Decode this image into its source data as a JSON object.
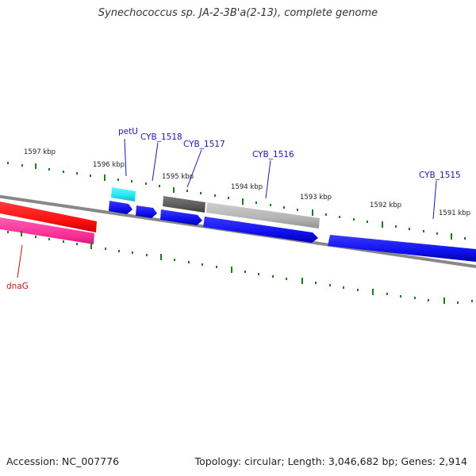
{
  "title": "Synechococcus sp. JA-2-3B'a(2-13), complete genome",
  "accession": "Accession: NC_007776",
  "summary": "Topology: circular; Length: 3,046,682 bp; Genes: 2,914",
  "kbp_labels": {
    "k1597": "1597 kbp",
    "k1596": "1596 kbp",
    "k1595": "1595 kbp",
    "k1594": "1594 kbp",
    "k1593": "1593 kbp",
    "k1592": "1592 kbp",
    "k1591": "1591 kbp"
  },
  "genes": {
    "petU": "petU",
    "cyb1518": "CYB_1518",
    "cyb1517": "CYB_1517",
    "cyb1516": "CYB_1516",
    "cyb1515": "CYB_1515",
    "dnaG": "dnaG"
  },
  "colors": {
    "forward_cds": "#1010ee",
    "reverse_cds": "#ff1111",
    "reverse_rna": "#ff3399",
    "petU_feature": "#22e5f0",
    "gene_dark": "#5a5a5a",
    "gene_light": "#b4b4b4",
    "backbone": "#888888",
    "ticks": "#1a7a1a"
  }
}
